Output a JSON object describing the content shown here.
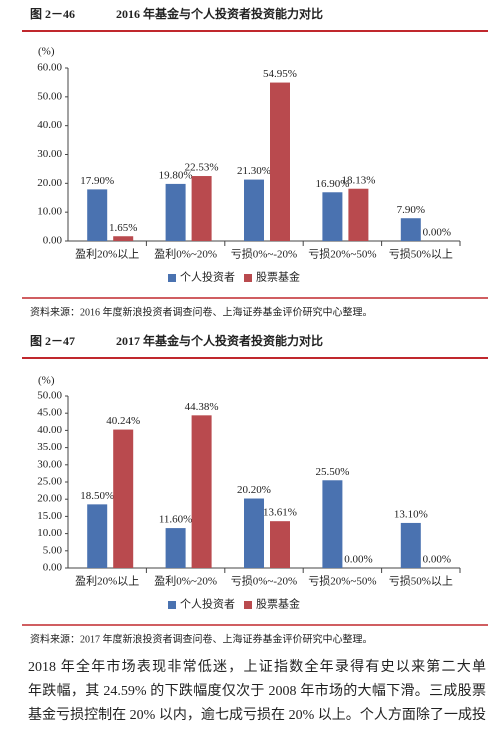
{
  "chart_data": [
    {
      "type": "bar",
      "figure_label": "图 2－46",
      "title": "2016 年基金与个人投资者投资能力对比",
      "ylabel": "(%)",
      "categories": [
        "盈利20%以上",
        "盈利0%~20%",
        "亏损0%~-20%",
        "亏损20%~50%",
        "亏损50%以上"
      ],
      "series": [
        {
          "name": "个人投资者",
          "color": "#4a72b0",
          "values": [
            17.9,
            19.8,
            21.3,
            16.9,
            7.9
          ],
          "value_labels": [
            "17.90%",
            "19.80%",
            "21.30%",
            "16.90%",
            "7.90%"
          ]
        },
        {
          "name": "股票基金",
          "color": "#b94a4e",
          "values": [
            1.65,
            22.53,
            54.95,
            18.13,
            0
          ],
          "value_labels": [
            "1.65%",
            "22.53%",
            "54.95%",
            "18.13%",
            "0.00%"
          ]
        }
      ],
      "ylim": [
        0,
        60
      ],
      "yticks": [
        {
          "value": 0,
          "label": "0.00"
        },
        {
          "value": 10,
          "label": "10.00"
        },
        {
          "value": 20,
          "label": "20.00"
        },
        {
          "value": 30,
          "label": "30.00"
        },
        {
          "value": 40,
          "label": "40.00"
        },
        {
          "value": 50,
          "label": "50.00"
        },
        {
          "value": 60,
          "label": "60.00"
        }
      ],
      "legend": "bottom",
      "source": "资料来源：2016 年度新浪投资者调查问卷、上海证券基金评价研究中心整理。"
    },
    {
      "type": "bar",
      "figure_label": "图 2－47",
      "title": "2017 年基金与个人投资者投资能力对比",
      "ylabel": "(%)",
      "categories": [
        "盈利20%以上",
        "盈利0%~20%",
        "亏损0%~-20%",
        "亏损20%~50%",
        "亏损50%以上"
      ],
      "series": [
        {
          "name": "个人投资者",
          "color": "#4a72b0",
          "values": [
            18.5,
            11.6,
            20.2,
            25.5,
            13.1
          ],
          "value_labels": [
            "18.50%",
            "11.60%",
            "20.20%",
            "25.50%",
            "13.10%"
          ]
        },
        {
          "name": "股票基金",
          "color": "#b94a4e",
          "values": [
            40.24,
            44.38,
            13.61,
            0,
            0
          ],
          "value_labels": [
            "40.24%",
            "44.38%",
            "13.61%",
            "0.00%",
            "0.00%"
          ]
        }
      ],
      "ylim": [
        0,
        50
      ],
      "yticks": [
        {
          "value": 0,
          "label": "0.00"
        },
        {
          "value": 5,
          "label": "5.00"
        },
        {
          "value": 10,
          "label": "10.00"
        },
        {
          "value": 15,
          "label": "15.00"
        },
        {
          "value": 20,
          "label": "20.00"
        },
        {
          "value": 25,
          "label": "25.00"
        },
        {
          "value": 30,
          "label": "30.00"
        },
        {
          "value": 35,
          "label": "35.00"
        },
        {
          "value": 40,
          "label": "40.00"
        },
        {
          "value": 45,
          "label": "45.00"
        },
        {
          "value": 50,
          "label": "50.00"
        }
      ],
      "legend": "bottom",
      "source": "资料来源：2017 年度新浪投资者调查问卷、上海证券基金评价研究中心整理。"
    }
  ],
  "body": {
    "lines": [
      "2018 年全年市场表现非常低迷，上证指数全年录得有史以来第二大单",
      "年跌幅，其 24.59% 的下跌幅度仅次于 2008 年市场的大幅下滑。三成股票",
      "基金亏损控制在 20% 以内，逾七成亏损在 20% 以上。个人方面除了一成投"
    ]
  }
}
